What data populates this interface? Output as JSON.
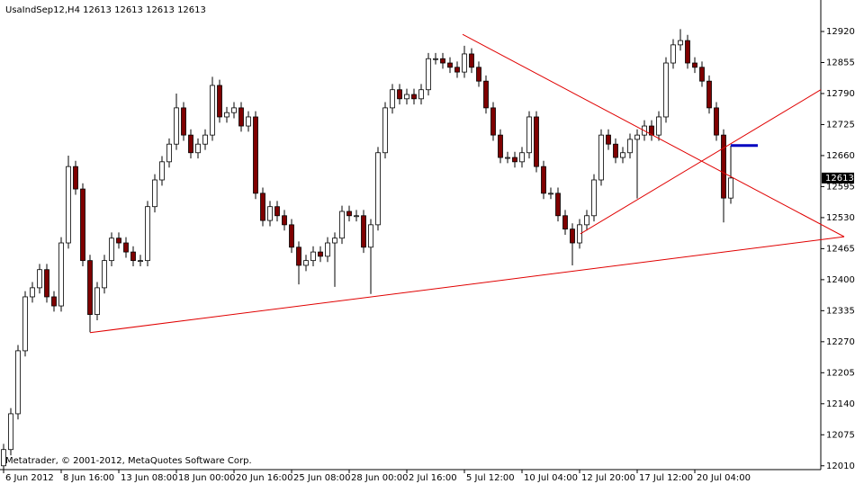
{
  "chart_data": {
    "type": "candlestick",
    "title": "UsaIndSep12,H4  12613 12613 12613 12613",
    "footer": "Metatrader, © 2001-2012, MetaQuotes Software Corp.",
    "open": [
      12010,
      12044,
      12119,
      12251,
      12364,
      12383,
      12421,
      12364,
      12345,
      12477,
      12637,
      12590,
      12440,
      12327,
      12383,
      12440,
      12487,
      12477,
      12458,
      12440,
      12440,
      12553,
      12609,
      12647,
      12684,
      12760,
      12703,
      12666,
      12684,
      12703,
      12807,
      12741,
      12750,
      12760,
      12722,
      12741,
      12581,
      12524,
      12553,
      12534,
      12515,
      12468,
      12430,
      12440,
      12458,
      12449,
      12477,
      12487,
      12543,
      12534,
      12534,
      12468,
      12515,
      12666,
      12760,
      12798,
      12779,
      12788,
      12779,
      12798,
      12863,
      12863,
      12854,
      12845,
      12835,
      12873,
      12845,
      12816,
      12760,
      12703,
      12656,
      12656,
      12647,
      12666,
      12741,
      12637,
      12581,
      12581,
      12534,
      12506,
      12477,
      12515,
      12534,
      12609,
      12703,
      12684,
      12656,
      12666,
      12694,
      12703,
      12722,
      12703,
      12741,
      12854,
      12892,
      12901,
      12854,
      12845,
      12816,
      12760,
      12703,
      12571
    ],
    "high": [
      12056,
      12131,
      12263,
      12376,
      12395,
      12433,
      12433,
      12376,
      12489,
      12660,
      12649,
      12602,
      12452,
      12395,
      12452,
      12499,
      12499,
      12489,
      12470,
      12452,
      12565,
      12621,
      12659,
      12696,
      12790,
      12772,
      12715,
      12696,
      12715,
      12825,
      12819,
      12762,
      12772,
      12772,
      12753,
      12753,
      12593,
      12565,
      12565,
      12546,
      12527,
      12480,
      12452,
      12470,
      12470,
      12489,
      12499,
      12555,
      12555,
      12546,
      12546,
      12527,
      12678,
      12772,
      12810,
      12810,
      12800,
      12800,
      12810,
      12875,
      12875,
      12875,
      12866,
      12857,
      12890,
      12885,
      12857,
      12828,
      12772,
      12715,
      12668,
      12668,
      12678,
      12753,
      12753,
      12649,
      12593,
      12593,
      12546,
      12518,
      12527,
      12546,
      12621,
      12715,
      12715,
      12696,
      12678,
      12706,
      12715,
      12734,
      12734,
      12753,
      12866,
      12904,
      12925,
      12913,
      12866,
      12857,
      12828,
      12772,
      12715,
      12681
    ],
    "low": [
      11998,
      12032,
      12107,
      12239,
      12352,
      12371,
      12352,
      12333,
      12333,
      12465,
      12578,
      12428,
      12290,
      12315,
      12371,
      12428,
      12465,
      12446,
      12428,
      12428,
      12428,
      12541,
      12597,
      12635,
      12672,
      12691,
      12654,
      12654,
      12672,
      12691,
      12729,
      12729,
      12738,
      12710,
      12710,
      12569,
      12512,
      12512,
      12522,
      12503,
      12456,
      12390,
      12418,
      12428,
      12437,
      12437,
      12385,
      12475,
      12522,
      12522,
      12456,
      12370,
      12503,
      12654,
      12748,
      12767,
      12767,
      12767,
      12767,
      12786,
      12851,
      12842,
      12833,
      12823,
      12823,
      12833,
      12804,
      12748,
      12691,
      12644,
      12644,
      12635,
      12635,
      12654,
      12625,
      12569,
      12569,
      12522,
      12494,
      12430,
      12465,
      12503,
      12522,
      12597,
      12672,
      12644,
      12644,
      12654,
      12570,
      12691,
      12691,
      12691,
      12729,
      12842,
      12880,
      12842,
      12833,
      12804,
      12748,
      12691,
      12520,
      12559
    ],
    "close": [
      12044,
      12119,
      12251,
      12364,
      12383,
      12421,
      12364,
      12345,
      12477,
      12637,
      12590,
      12440,
      12327,
      12383,
      12440,
      12487,
      12477,
      12458,
      12440,
      12440,
      12553,
      12609,
      12647,
      12684,
      12760,
      12703,
      12666,
      12684,
      12703,
      12807,
      12741,
      12750,
      12760,
      12722,
      12741,
      12581,
      12524,
      12553,
      12534,
      12515,
      12468,
      12430,
      12440,
      12458,
      12449,
      12477,
      12487,
      12543,
      12534,
      12534,
      12468,
      12515,
      12666,
      12760,
      12798,
      12779,
      12788,
      12779,
      12798,
      12863,
      12863,
      12854,
      12845,
      12835,
      12873,
      12845,
      12816,
      12760,
      12703,
      12656,
      12656,
      12647,
      12666,
      12741,
      12637,
      12581,
      12581,
      12534,
      12506,
      12477,
      12515,
      12534,
      12609,
      12703,
      12684,
      12656,
      12666,
      12694,
      12703,
      12722,
      12703,
      12741,
      12854,
      12892,
      12901,
      12854,
      12845,
      12816,
      12760,
      12703,
      12571,
      12613
    ],
    "up_color": "#ffffff",
    "down_color": "#7f0000",
    "wick_color": "#000000",
    "xlim": [
      -0.5,
      113.5
    ],
    "ylim": [
      12002,
      12986
    ],
    "xticks": [
      {
        "value": 0,
        "label": "6 Jun 2012"
      },
      {
        "value": 8,
        "label": "8 Jun 16:00"
      },
      {
        "value": 16,
        "label": "13 Jun 08:00"
      },
      {
        "value": 24,
        "label": "18 Jun 00:00"
      },
      {
        "value": 32,
        "label": "20 Jun 16:00"
      },
      {
        "value": 40,
        "label": "25 Jun 08:00"
      },
      {
        "value": 48,
        "label": "28 Jun 00:00"
      },
      {
        "value": 56,
        "label": "2 Jul 16:00"
      },
      {
        "value": 64,
        "label": "5 Jul 12:00"
      },
      {
        "value": 72,
        "label": "10 Jul 04:00"
      },
      {
        "value": 80,
        "label": "12 Jul 20:00"
      },
      {
        "value": 88,
        "label": "17 Jul 12:00"
      },
      {
        "value": 96,
        "label": "20 Jul 04:00"
      }
    ],
    "yticks": [
      12920,
      12855,
      12790,
      12725,
      12660,
      12595,
      12530,
      12465,
      12400,
      12335,
      12270,
      12205,
      12140,
      12075,
      12010
    ],
    "lines": [
      {
        "color": "#e00000",
        "x": [
          12,
          116.75
        ],
        "y": [
          12289,
          12490
        ]
      },
      {
        "color": "#e00000",
        "x": [
          63.75,
          116.75
        ],
        "y": [
          12914,
          12490
        ]
      },
      {
        "color": "#e00000",
        "x": [
          80.1,
          113.5
        ],
        "y": [
          12496,
          12798
        ]
      },
      {
        "color": "#0000c0",
        "x": [
          101,
          104.75
        ],
        "y": [
          12681,
          12681
        ]
      }
    ]
  }
}
